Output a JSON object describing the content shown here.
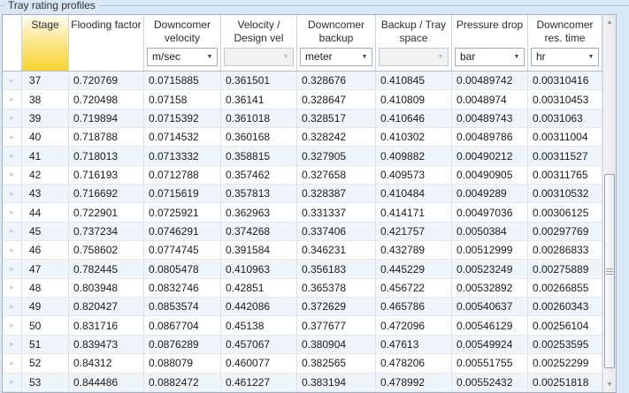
{
  "group": {
    "label": "Tray rating profiles"
  },
  "icons": {
    "combo_arrow": "▼",
    "row_marker": "▸",
    "scroll_up": "▲",
    "scroll_down": "▼"
  },
  "colors": {
    "stage_header_top": "#fefdf4",
    "stage_header_bottom": "#f8d430",
    "row_alt": "#eef5fb",
    "background": "#d9e7f6"
  },
  "grid": {
    "columns": [
      {
        "title": "Stage",
        "unit": null,
        "unit_enabled": null,
        "highlight": true
      },
      {
        "title": "Flooding factor",
        "unit": null,
        "unit_enabled": null
      },
      {
        "title": "Downcomer\nvelocity",
        "unit": "m/sec",
        "unit_enabled": true
      },
      {
        "title": "Velocity /\nDesign vel",
        "unit": "",
        "unit_enabled": false
      },
      {
        "title": "Downcomer\nbackup",
        "unit": "meter",
        "unit_enabled": true
      },
      {
        "title": "Backup / Tray\nspace",
        "unit": "",
        "unit_enabled": false
      },
      {
        "title": "Pressure drop",
        "unit": "bar",
        "unit_enabled": true
      },
      {
        "title": "Downcomer\nres. time",
        "unit": "hr",
        "unit_enabled": true
      }
    ],
    "rows": [
      {
        "stage": "37",
        "values": [
          "0.720769",
          "0.0715885",
          "0.361501",
          "0.328676",
          "0.410845",
          "0.00489742",
          "0.00310416"
        ]
      },
      {
        "stage": "38",
        "values": [
          "0.720498",
          "0.07158",
          "0.36141",
          "0.328647",
          "0.410809",
          "0.0048974",
          "0.00310453"
        ]
      },
      {
        "stage": "39",
        "values": [
          "0.719894",
          "0.0715392",
          "0.361018",
          "0.328517",
          "0.410646",
          "0.00489743",
          "0.0031063"
        ]
      },
      {
        "stage": "40",
        "values": [
          "0.718788",
          "0.0714532",
          "0.360168",
          "0.328242",
          "0.410302",
          "0.00489786",
          "0.00311004"
        ]
      },
      {
        "stage": "41",
        "values": [
          "0.718013",
          "0.0713332",
          "0.358815",
          "0.327905",
          "0.409882",
          "0.00490212",
          "0.00311527"
        ]
      },
      {
        "stage": "42",
        "values": [
          "0.716193",
          "0.0712788",
          "0.357462",
          "0.327658",
          "0.409573",
          "0.00490905",
          "0.00311765"
        ]
      },
      {
        "stage": "43",
        "values": [
          "0.716692",
          "0.0715619",
          "0.357813",
          "0.328387",
          "0.410484",
          "0.0049289",
          "0.00310532"
        ]
      },
      {
        "stage": "44",
        "values": [
          "0.722901",
          "0.0725921",
          "0.362963",
          "0.331337",
          "0.414171",
          "0.00497036",
          "0.00306125"
        ]
      },
      {
        "stage": "45",
        "values": [
          "0.737234",
          "0.0746291",
          "0.374268",
          "0.337406",
          "0.421757",
          "0.0050384",
          "0.00297769"
        ]
      },
      {
        "stage": "46",
        "values": [
          "0.758602",
          "0.0774745",
          "0.391584",
          "0.346231",
          "0.432789",
          "0.00512999",
          "0.00286833"
        ]
      },
      {
        "stage": "47",
        "values": [
          "0.782445",
          "0.0805478",
          "0.410963",
          "0.356183",
          "0.445229",
          "0.00523249",
          "0.00275889"
        ]
      },
      {
        "stage": "48",
        "values": [
          "0.803948",
          "0.0832746",
          "0.42851",
          "0.365378",
          "0.456722",
          "0.00532892",
          "0.00266855"
        ]
      },
      {
        "stage": "49",
        "values": [
          "0.820427",
          "0.0853574",
          "0.442086",
          "0.372629",
          "0.465786",
          "0.00540637",
          "0.00260343"
        ]
      },
      {
        "stage": "50",
        "values": [
          "0.831716",
          "0.0867704",
          "0.45138",
          "0.377677",
          "0.472096",
          "0.00546129",
          "0.00256104"
        ]
      },
      {
        "stage": "51",
        "values": [
          "0.839473",
          "0.0876289",
          "0.457067",
          "0.380904",
          "0.47613",
          "0.00549924",
          "0.00253595"
        ]
      },
      {
        "stage": "52",
        "values": [
          "0.84312",
          "0.088079",
          "0.460077",
          "0.382565",
          "0.478206",
          "0.00551755",
          "0.00252299"
        ]
      },
      {
        "stage": "53",
        "values": [
          "0.844486",
          "0.0882472",
          "0.461227",
          "0.383194",
          "0.478992",
          "0.00552432",
          "0.00251818"
        ]
      }
    ]
  }
}
